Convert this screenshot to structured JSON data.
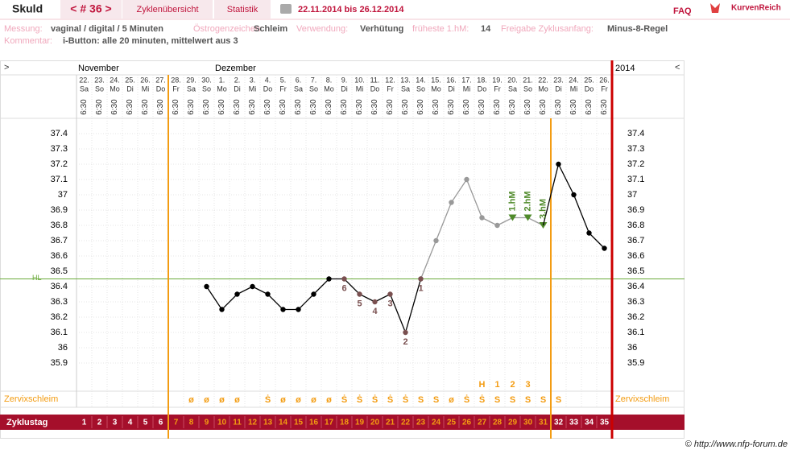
{
  "header": {
    "name": "Skuld",
    "cycle_nav": "< # 36 >",
    "tabs": [
      "Zyklenübersicht",
      "Statistik"
    ],
    "date_range": "22.11.2014 bis 26.12.2014",
    "faq": "FAQ",
    "brand": "KurvenReich"
  },
  "info": {
    "rows": [
      [
        {
          "label": "Messung:",
          "value": "vaginal / digital / 5 Minuten"
        },
        {
          "label": "Östrogenzeichen:",
          "value": "Schleim"
        },
        {
          "label": "Verwendung:",
          "value": "Verhütung"
        },
        {
          "label": "früheste 1.hM:",
          "value": "14"
        },
        {
          "label": "Freigabe Zyklusanfang:",
          "value": "Minus-8-Regel"
        }
      ],
      [
        {
          "label": "Kommentar:",
          "value": "i-Button: alle 20 minuten, mittelwert aus 3"
        }
      ]
    ]
  },
  "chart_data": {
    "type": "line",
    "nav_left": ">",
    "nav_right": "<",
    "months": [
      "November",
      "Dezember"
    ],
    "year": "2014",
    "days": [
      "22.",
      "23.",
      "24.",
      "25.",
      "26.",
      "27.",
      "28.",
      "29.",
      "30.",
      "1.",
      "2.",
      "3.",
      "4.",
      "5.",
      "6.",
      "7.",
      "8.",
      "9.",
      "10.",
      "11.",
      "12.",
      "13.",
      "14.",
      "15.",
      "16.",
      "17.",
      "18.",
      "19.",
      "20.",
      "21.",
      "22.",
      "23.",
      "24.",
      "25.",
      "26."
    ],
    "categories": [
      "Sa",
      "So",
      "Mo",
      "Di",
      "Mi",
      "Do",
      "Fr",
      "Sa",
      "So",
      "Mo",
      "Di",
      "Mi",
      "Do",
      "Fr",
      "Sa",
      "So",
      "Mo",
      "Di",
      "Mi",
      "Do",
      "Fr",
      "Sa",
      "So",
      "Mo",
      "Di",
      "Mi",
      "Do",
      "Fr",
      "Sa",
      "So",
      "Mo",
      "Di",
      "Mi",
      "Do",
      "Fr"
    ],
    "time": "6:30",
    "ylim": [
      35.8,
      37.5
    ],
    "yticks": [
      35.9,
      36,
      36.1,
      36.2,
      36.3,
      36.4,
      36.5,
      36.6,
      36.7,
      36.8,
      36.9,
      37,
      37.1,
      37.2,
      37.3,
      37.4
    ],
    "series": [
      {
        "color": "#000000",
        "values": [
          null,
          null,
          null,
          null,
          null,
          null,
          null,
          null,
          36.4,
          36.25,
          36.35,
          36.4,
          36.35,
          36.25,
          36.25,
          36.35,
          36.45,
          36.45,
          36.35,
          36.3,
          36.35,
          36.1,
          36.45,
          null,
          null,
          null,
          null,
          null,
          null,
          null,
          36.8,
          37.2,
          37.0,
          36.75,
          36.65
        ]
      },
      {
        "color": "#999999",
        "values": [
          null,
          null,
          null,
          null,
          null,
          null,
          null,
          null,
          null,
          null,
          null,
          null,
          null,
          null,
          null,
          null,
          null,
          null,
          null,
          null,
          null,
          null,
          36.45,
          36.7,
          36.95,
          37.1,
          36.85,
          36.8,
          36.85,
          36.85,
          36.8,
          null,
          null,
          null,
          null
        ]
      }
    ],
    "hl_label": "HL",
    "hl_value": 36.45,
    "low_labels": [
      null,
      null,
      null,
      null,
      null,
      null,
      null,
      null,
      null,
      null,
      null,
      null,
      null,
      null,
      null,
      null,
      null,
      "6",
      "5",
      "4",
      "3",
      "2",
      "1",
      null,
      null,
      null,
      null,
      null,
      null,
      null,
      null,
      null,
      null,
      null,
      null
    ],
    "hm_labels": [
      null,
      null,
      null,
      null,
      null,
      null,
      null,
      null,
      null,
      null,
      null,
      null,
      null,
      null,
      null,
      null,
      null,
      null,
      null,
      null,
      null,
      null,
      null,
      null,
      null,
      null,
      null,
      null,
      "1.hM",
      "2.hM",
      "3.hM",
      null,
      null,
      null,
      null
    ],
    "peak_labels": [
      null,
      null,
      null,
      null,
      null,
      null,
      null,
      null,
      null,
      null,
      null,
      null,
      null,
      null,
      null,
      null,
      null,
      null,
      null,
      null,
      null,
      null,
      null,
      null,
      null,
      null,
      "H",
      "1",
      "2",
      "3",
      null,
      null,
      null,
      null,
      null
    ],
    "mucus_label": "Zervixschleim",
    "mucus": [
      null,
      null,
      null,
      null,
      null,
      null,
      null,
      "ø",
      "ø",
      "ø",
      "ø",
      null,
      "Ṡ",
      "ø",
      "ø",
      "ø",
      "ø",
      "Ṡ",
      "Ṡ",
      "Ṡ",
      "Ṡ",
      "Ṡ",
      "S",
      "S",
      "ø",
      "Ṡ",
      "Ṡ",
      "S",
      "S",
      "S",
      "S",
      "S",
      null,
      null,
      null
    ],
    "cycle_label": "Zyklustag",
    "cycle_days": [
      1,
      2,
      3,
      4,
      5,
      6,
      7,
      8,
      9,
      10,
      11,
      12,
      13,
      14,
      15,
      16,
      17,
      18,
      19,
      20,
      21,
      22,
      23,
      24,
      25,
      26,
      27,
      28,
      29,
      30,
      31,
      32,
      33,
      34,
      35
    ]
  },
  "footer": {
    "copyright": "© http://www.nfp-forum.de"
  }
}
